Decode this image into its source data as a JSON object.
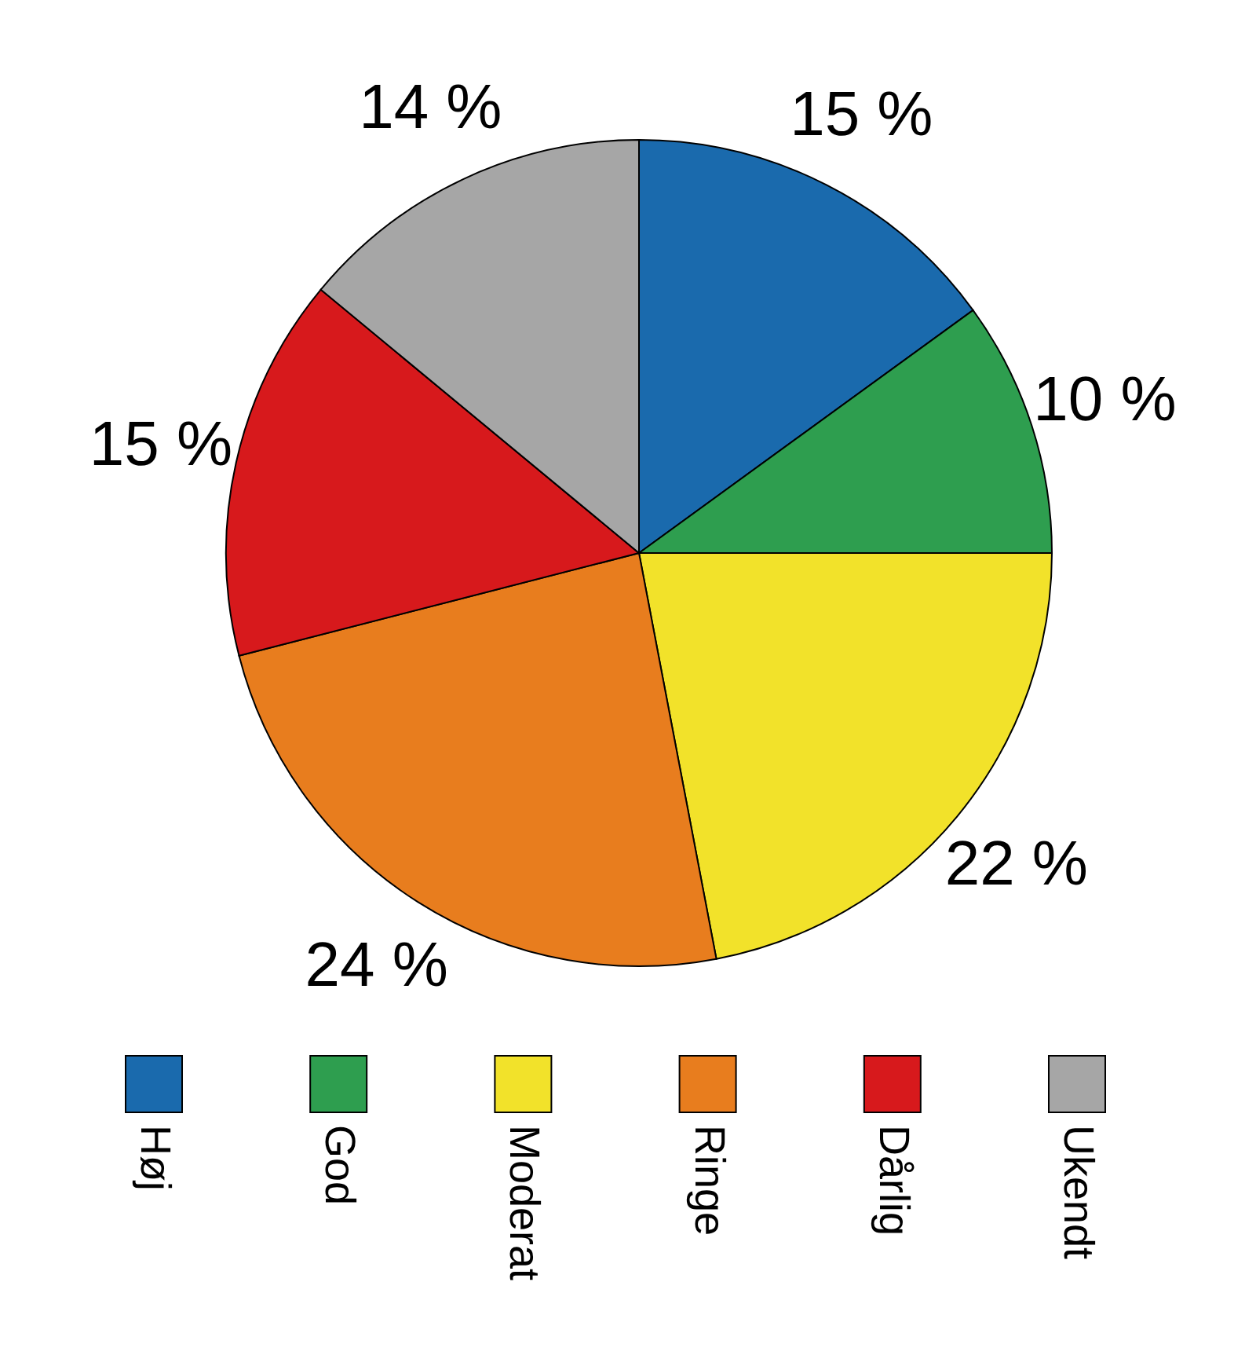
{
  "chart_data": {
    "type": "pie",
    "categories": [
      "Høj",
      "God",
      "Moderat",
      "Ringe",
      "Dårlig",
      "Ukendt"
    ],
    "values": [
      15,
      10,
      22,
      24,
      15,
      14
    ],
    "colors": [
      "#1a6aad",
      "#2e9e4f",
      "#f2e22a",
      "#e87d1e",
      "#d7191c",
      "#a6a6a6"
    ],
    "value_labels": [
      "15 %",
      "10 %",
      "22 %",
      "24 %",
      "15 %",
      "14 %"
    ],
    "legend": "bottom"
  }
}
